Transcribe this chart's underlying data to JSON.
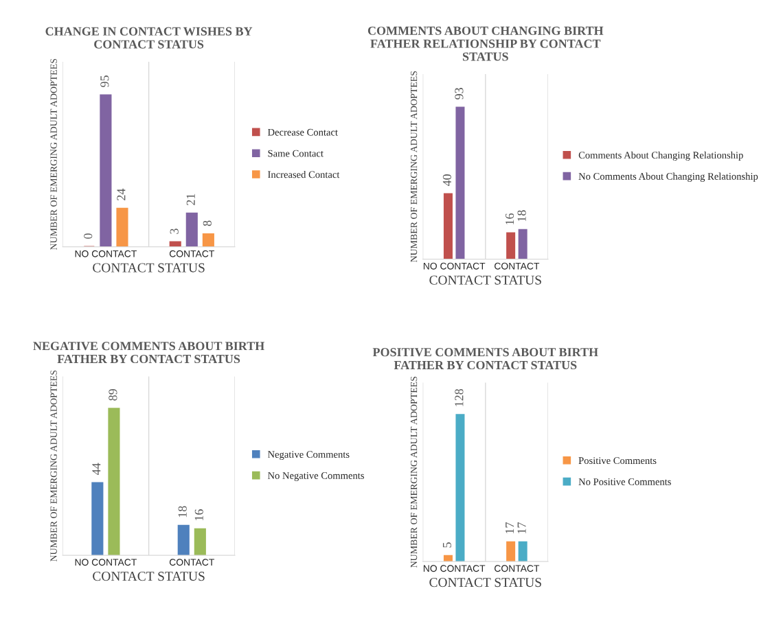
{
  "chart_data": [
    {
      "type": "bar",
      "title": "CHANGE IN CONTACT WISHES BY CONTACT STATUS",
      "xlabel": "CONTACT STATUS",
      "ylabel": "NUMBER OF EMERGING ADULT ADOPTEES",
      "categories": [
        "NO CONTACT",
        "CONTACT"
      ],
      "data_labels": true,
      "legend": "right",
      "grid": "x",
      "tick_labels": "x",
      "series": [
        {
          "name": "Decrease Contact",
          "color": "#c0504d",
          "values": [
            0,
            3
          ]
        },
        {
          "name": "Same Contact",
          "color": "#8064a2",
          "values": [
            95,
            21
          ]
        },
        {
          "name": "Increased Contact",
          "color": "#f79646",
          "values": [
            24,
            8
          ]
        }
      ]
    },
    {
      "type": "bar",
      "title": "COMMENTS ABOUT CHANGING BIRTH FATHER RELATIONSHIP BY CONTACT STATUS",
      "xlabel": "CONTACT STATUS",
      "ylabel": "NUMBER OF EMERGING ADULT ADOPTEES",
      "categories": [
        "NO CONTACT",
        "CONTACT"
      ],
      "data_labels": true,
      "legend": "right",
      "grid": "x",
      "tick_labels": "x",
      "series": [
        {
          "name": "Comments About Changing Relationship",
          "color": "#c0504d",
          "values": [
            40,
            16
          ]
        },
        {
          "name": "No Comments About Changing Relationship",
          "color": "#8064a2",
          "values": [
            93,
            18
          ]
        }
      ]
    },
    {
      "type": "bar",
      "title": "NEGATIVE COMMENTS ABOUT BIRTH FATHER BY CONTACT STATUS",
      "xlabel": "CONTACT STATUS",
      "ylabel": "NUMBER OF EMERGING ADULT ADOPTEES",
      "categories": [
        "NO CONTACT",
        "CONTACT"
      ],
      "data_labels": true,
      "legend": "right",
      "grid": "x",
      "tick_labels": "x",
      "series": [
        {
          "name": "Negative Comments",
          "color": "#4f81bd",
          "values": [
            44,
            18
          ]
        },
        {
          "name": "No Negative Comments",
          "color": "#9bbb59",
          "values": [
            89,
            16
          ]
        }
      ]
    },
    {
      "type": "bar",
      "title": "POSITIVE COMMENTS ABOUT BIRTH FATHER BY CONTACT STATUS",
      "xlabel": "CONTACT STATUS",
      "ylabel": "NUMBER OF EMERGING ADULT ADOPTEES",
      "categories": [
        "NO CONTACT",
        "CONTACT"
      ],
      "data_labels": true,
      "legend": "right",
      "grid": "x",
      "tick_labels": "x",
      "series": [
        {
          "name": "Positive Comments",
          "color": "#f79646",
          "values": [
            5,
            17
          ]
        },
        {
          "name": "No Positive Comments",
          "color": "#4bacc6",
          "values": [
            128,
            17
          ]
        }
      ]
    }
  ]
}
